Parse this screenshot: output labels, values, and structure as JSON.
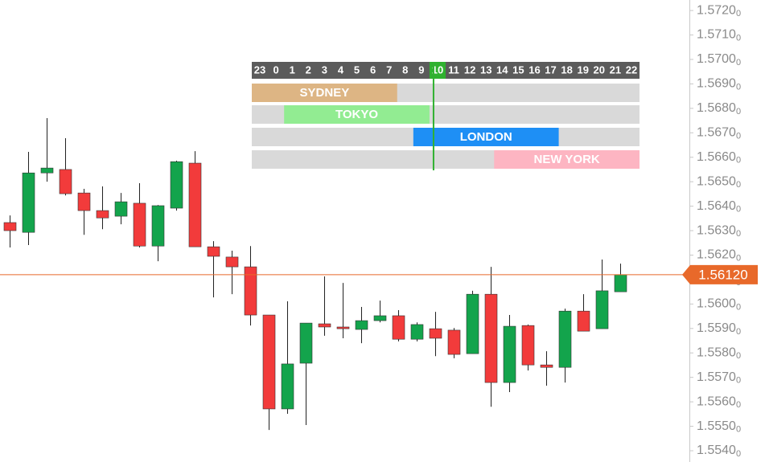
{
  "chart_data": {
    "type": "candlestick",
    "open": [
      1.56333,
      1.56293,
      1.56536,
      1.5655,
      1.56454,
      1.56382,
      1.56359,
      1.56412,
      1.56237,
      1.56392,
      1.56576,
      1.56234,
      1.56192,
      1.56152,
      1.55955,
      1.55571,
      1.55758,
      1.55919,
      1.55906,
      1.55896,
      1.55932,
      1.55952,
      1.55856,
      1.55899,
      1.55893,
      1.55797,
      1.5604,
      1.55679,
      1.55912,
      1.55751,
      1.55741,
      1.55971,
      1.55899,
      1.5605
    ],
    "high": [
      1.56362,
      1.56622,
      1.5676,
      1.56678,
      1.56471,
      1.56481,
      1.56454,
      1.56494,
      1.56405,
      1.56586,
      1.56625,
      1.56257,
      1.56218,
      1.56237,
      1.55955,
      1.56011,
      1.55922,
      1.56113,
      1.56086,
      1.55988,
      1.56014,
      1.55975,
      1.55925,
      1.55968,
      1.55902,
      1.56054,
      1.56152,
      1.55955,
      1.55916,
      1.55807,
      1.55981,
      1.5604,
      1.56182,
      1.56165
    ],
    "low": [
      1.56231,
      1.56241,
      1.565,
      1.56444,
      1.56283,
      1.56306,
      1.56326,
      1.56231,
      1.56175,
      1.56382,
      1.56234,
      1.56027,
      1.5604,
      1.55912,
      1.55485,
      1.55551,
      1.55505,
      1.5587,
      1.5586,
      1.5584,
      1.55925,
      1.55847,
      1.55847,
      1.55787,
      1.55778,
      1.55797,
      1.5558,
      1.5564,
      1.55728,
      1.55666,
      1.55679,
      1.55889,
      1.55899,
      1.5605
    ],
    "close": [
      1.563,
      1.56536,
      1.56556,
      1.56451,
      1.56382,
      1.56352,
      1.56418,
      1.56237,
      1.56402,
      1.56582,
      1.56234,
      1.56195,
      1.56152,
      1.55955,
      1.55571,
      1.55755,
      1.55922,
      1.55906,
      1.55899,
      1.55932,
      1.55952,
      1.55856,
      1.55916,
      1.5586,
      1.55794,
      1.5604,
      1.55679,
      1.55909,
      1.55751,
      1.55741,
      1.55971,
      1.55889,
      1.56054,
      1.5612
    ],
    "up_color": "#13a44c",
    "down_color": "#f23b3b",
    "ylim": [
      1.55354,
      1.57243
    ],
    "yticks": [
      {
        "value": 1.572,
        "label": "1.57200"
      },
      {
        "value": 1.571,
        "label": "1.57100"
      },
      {
        "value": 1.57,
        "label": "1.57000"
      },
      {
        "value": 1.569,
        "label": "1.56900"
      },
      {
        "value": 1.568,
        "label": "1.56800"
      },
      {
        "value": 1.567,
        "label": "1.56700"
      },
      {
        "value": 1.566,
        "label": "1.56600"
      },
      {
        "value": 1.565,
        "label": "1.56500"
      },
      {
        "value": 1.564,
        "label": "1.56400"
      },
      {
        "value": 1.563,
        "label": "1.56300"
      },
      {
        "value": 1.562,
        "label": "1.56200"
      },
      {
        "value": 1.561,
        "label": "1.56100"
      },
      {
        "value": 1.56,
        "label": "1.56000"
      },
      {
        "value": 1.559,
        "label": "1.55900"
      },
      {
        "value": 1.558,
        "label": "1.55800"
      },
      {
        "value": 1.557,
        "label": "1.55700"
      },
      {
        "value": 1.556,
        "label": "1.55600"
      },
      {
        "value": 1.555,
        "label": "1.55500"
      },
      {
        "value": 1.554,
        "label": "1.55400"
      }
    ],
    "last_price": {
      "value": 1.5612,
      "label": "1.56120"
    },
    "last_price_color": "#e8692a"
  },
  "sessions": {
    "hours": [
      23,
      0,
      1,
      2,
      3,
      4,
      5,
      6,
      7,
      8,
      9,
      10,
      11,
      12,
      13,
      14,
      15,
      16,
      17,
      18,
      19,
      20,
      21,
      22
    ],
    "current_hour": 10,
    "rows": [
      {
        "name": "SYDNEY",
        "start": 23,
        "end": 8,
        "color": "#ddb584"
      },
      {
        "name": "TOKYO",
        "start": 1,
        "end": 10,
        "color": "#92ec92"
      },
      {
        "name": "LONDON",
        "start": 9,
        "end": 18,
        "color": "#1e8ff5"
      },
      {
        "name": "NEW YORK",
        "start": 14,
        "end": 23,
        "color": "#fdb5c2"
      }
    ]
  }
}
